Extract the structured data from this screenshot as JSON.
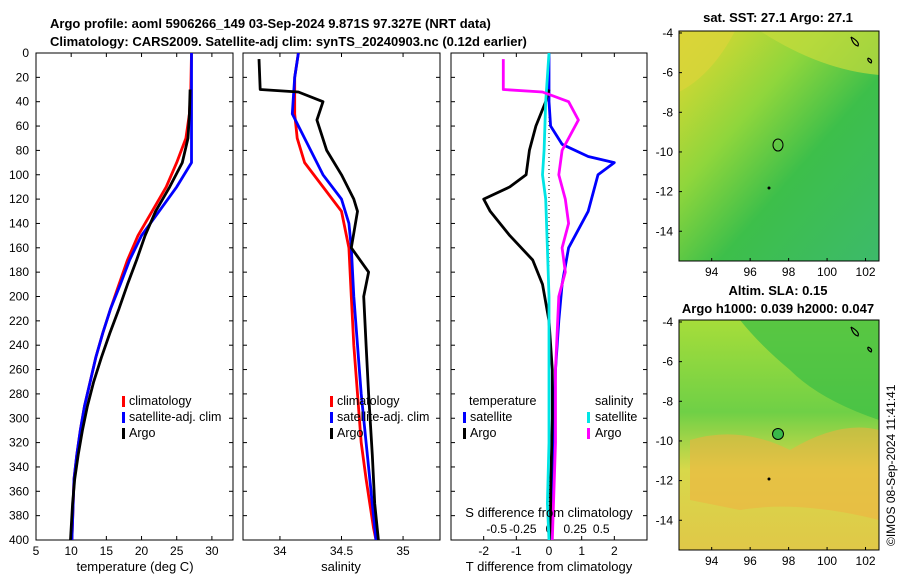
{
  "header": {
    "line1": "Argo profile: aoml 5906266_149 03-Sep-2024 9.871S 97.327E (NRT data)",
    "line2": "Climatology: CARS2009. Satellite-adj clim: synTS_20240903.nc (0.12d earlier)"
  },
  "map_sst": {
    "title": "sat. SST: 27.1 Argo: 27.1"
  },
  "map_sla": {
    "title1": "Altim. SLA: 0.15",
    "title2": "Argo h1000: 0.039 h2000: 0.047"
  },
  "credit": "©IMOS 08-Sep-2024 11:41:41",
  "colors": {
    "climatology": "#ff0000",
    "satellite": "#0000ff",
    "argo": "#000000",
    "sal_satellite": "#00e5e5",
    "sal_argo": "#ff00ff"
  },
  "chart_data": [
    {
      "id": "temperature",
      "type": "line",
      "xlabel": "temperature (deg C)",
      "ylabel": "",
      "xlim": [
        5,
        33
      ],
      "ylim": [
        400,
        0
      ],
      "xticks": [
        5,
        10,
        15,
        20,
        25,
        30
      ],
      "yticks": [
        0,
        20,
        40,
        60,
        80,
        100,
        120,
        140,
        160,
        180,
        200,
        220,
        240,
        260,
        280,
        300,
        320,
        340,
        360,
        380,
        400
      ],
      "legend": [
        "climatology",
        "satellite-adj. clim",
        "Argo"
      ],
      "legend_position": "lower-right",
      "series": [
        {
          "name": "climatology",
          "x": [
            27.1,
            27.0,
            26.8,
            26.3,
            25.0,
            23.5,
            21.5,
            19.5,
            18.0,
            16.8,
            15.6,
            14.5,
            13.5,
            12.7,
            11.9,
            11.3,
            10.8,
            10.4,
            10.1
          ],
          "y": [
            0,
            30,
            50,
            70,
            90,
            110,
            130,
            150,
            170,
            190,
            210,
            230,
            250,
            270,
            290,
            310,
            330,
            350,
            400
          ]
        },
        {
          "name": "satellite-adj. clim",
          "x": [
            27.1,
            27.1,
            27.1,
            27.1,
            27.1,
            25.0,
            22.5,
            20.0,
            18.3,
            17.0,
            15.6,
            14.5,
            13.5,
            12.7,
            11.9,
            11.3,
            10.8,
            10.4,
            10.1
          ],
          "y": [
            0,
            30,
            50,
            70,
            90,
            110,
            130,
            150,
            170,
            190,
            210,
            230,
            250,
            270,
            290,
            310,
            330,
            350,
            400
          ]
        },
        {
          "name": "Argo",
          "x": [
            26.9,
            26.8,
            26.6,
            25.8,
            24.0,
            22.0,
            20.5,
            19.3,
            18.0,
            16.8,
            15.5,
            14.3,
            13.2,
            12.3,
            11.6,
            11.0,
            10.5,
            10.2,
            9.9
          ],
          "y": [
            30,
            50,
            70,
            90,
            110,
            130,
            150,
            170,
            190,
            210,
            230,
            250,
            270,
            290,
            310,
            330,
            350,
            370,
            400
          ]
        }
      ]
    },
    {
      "id": "salinity",
      "type": "line",
      "xlabel": "salinity",
      "ylabel": "",
      "xlim": [
        33.7,
        35.3
      ],
      "ylim": [
        400,
        0
      ],
      "xticks": [
        34,
        34.5,
        35
      ],
      "legend": [
        "climatology",
        "satellite-adj. clim",
        "Argo"
      ],
      "legend_position": "lower-right",
      "series": [
        {
          "name": "climatology",
          "x": [
            34.15,
            34.12,
            34.12,
            34.14,
            34.2,
            34.35,
            34.5,
            34.56,
            34.58,
            34.6,
            34.63,
            34.66,
            34.7,
            34.73,
            34.76,
            34.78
          ],
          "y": [
            0,
            20,
            50,
            70,
            90,
            110,
            130,
            160,
            200,
            240,
            280,
            320,
            350,
            370,
            390,
            400
          ]
        },
        {
          "name": "satellite-adj. clim",
          "x": [
            34.15,
            34.12,
            34.1,
            34.2,
            34.35,
            34.5,
            34.56,
            34.58,
            34.6,
            34.63,
            34.66,
            34.7,
            34.73,
            34.76,
            34.78
          ],
          "y": [
            0,
            20,
            50,
            70,
            100,
            120,
            140,
            160,
            200,
            240,
            280,
            320,
            350,
            380,
            400
          ]
        },
        {
          "name": "Argo",
          "x": [
            33.83,
            33.84,
            34.15,
            34.35,
            34.3,
            34.38,
            34.5,
            34.6,
            34.63,
            34.58,
            34.72,
            34.68,
            34.7,
            34.72,
            34.75,
            34.77,
            34.8
          ],
          "y": [
            5,
            30,
            32,
            40,
            55,
            80,
            100,
            120,
            130,
            160,
            180,
            200,
            240,
            280,
            330,
            370,
            400
          ]
        }
      ]
    },
    {
      "id": "difference",
      "type": "line",
      "xlabel": "T difference from climatology",
      "ylabel": "",
      "xlim": [
        -3,
        3
      ],
      "ylim": [
        400,
        0
      ],
      "xticks": [
        -2,
        -1,
        0,
        1,
        2
      ],
      "top_xlabel": "S difference from climatology",
      "top_xticks": [
        "-0.5",
        "-0.25",
        "0",
        "0.25",
        "0.5"
      ],
      "legend": [
        "temperature",
        "satellite",
        "Argo",
        "salinity",
        "satellite",
        "Argo"
      ],
      "legend_position": "lower-center",
      "series": [
        {
          "name": "T satellite",
          "x": [
            0,
            0,
            0.05,
            0.4,
            1.2,
            2.0,
            1.5,
            1.2,
            0.6,
            0.4,
            0.3,
            0.2,
            0.15,
            0.1,
            0.05,
            0.05
          ],
          "y": [
            0,
            40,
            60,
            75,
            85,
            90,
            100,
            130,
            160,
            190,
            220,
            260,
            300,
            340,
            380,
            400
          ]
        },
        {
          "name": "T Argo",
          "x": [
            0,
            -0.1,
            -0.4,
            -0.6,
            -0.7,
            -1.2,
            -2.0,
            -1.8,
            -1.2,
            -0.5,
            -0.2,
            0,
            0.1,
            0.1,
            0.05,
            0.05
          ],
          "y": [
            30,
            40,
            60,
            80,
            100,
            110,
            120,
            130,
            150,
            170,
            190,
            220,
            260,
            300,
            360,
            400
          ]
        },
        {
          "name": "S satellite",
          "x": [
            0,
            -0.1,
            -0.15,
            -0.2,
            -0.1,
            -0.05,
            0,
            0,
            0,
            -0.05,
            0
          ],
          "y": [
            0,
            40,
            80,
            100,
            120,
            160,
            200,
            260,
            320,
            370,
            400
          ]
        },
        {
          "name": "S Argo",
          "x": [
            -1.4,
            -1.4,
            -0.2,
            0.6,
            0.9,
            0.4,
            0.3,
            0.5,
            0.6,
            0.4,
            0.5,
            0.3,
            0.2,
            0.2,
            0.1
          ],
          "y": [
            5,
            30,
            32,
            40,
            55,
            80,
            100,
            120,
            140,
            160,
            180,
            200,
            260,
            320,
            400
          ]
        }
      ]
    }
  ],
  "maps": [
    {
      "id": "sst_map",
      "xticks": [
        "94",
        "96",
        "98",
        "100",
        "102"
      ],
      "yticks": [
        "-4",
        "-6",
        "-8",
        "-10",
        "-12",
        "-14"
      ],
      "xlim": [
        92.3,
        102.7
      ],
      "ylim": [
        -15.5,
        -3.9
      ]
    },
    {
      "id": "sla_map",
      "xticks": [
        "94",
        "96",
        "98",
        "100",
        "102"
      ],
      "yticks": [
        "-4",
        "-6",
        "-8",
        "-10",
        "-12",
        "-14"
      ],
      "xlim": [
        92.3,
        102.7
      ],
      "ylim": [
        -15.5,
        -3.9
      ]
    }
  ]
}
